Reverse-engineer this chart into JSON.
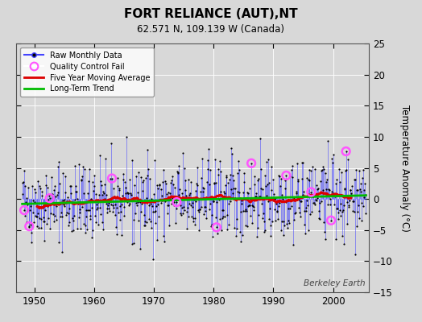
{
  "title": "FORT RELIANCE (AUT),NT",
  "subtitle": "62.571 N, 109.139 W (Canada)",
  "ylabel": "Temperature Anomaly (°C)",
  "watermark": "Berkeley Earth",
  "xlim": [
    1947,
    2006
  ],
  "ylim": [
    -15,
    25
  ],
  "yticks": [
    -15,
    -10,
    -5,
    0,
    5,
    10,
    15,
    20,
    25
  ],
  "xticks": [
    1950,
    1960,
    1970,
    1980,
    1990,
    2000
  ],
  "bg_color": "#d8d8d8",
  "plot_bg_color": "#d8d8d8",
  "raw_color": "#4444ff",
  "raw_dot_color": "#000000",
  "qc_color": "#ff55ff",
  "moving_avg_color": "#dd0000",
  "trend_color": "#00bb00",
  "seed": 42,
  "trend_slope": 0.025,
  "noise_scale": 3.0,
  "seasonal_amp": 2.0,
  "years_start": 1948.0,
  "years_end": 2005.5,
  "n_months": 691,
  "window": 60,
  "qc_indices": [
    4,
    14,
    55,
    180,
    310,
    390,
    460,
    530,
    580,
    620,
    650
  ]
}
